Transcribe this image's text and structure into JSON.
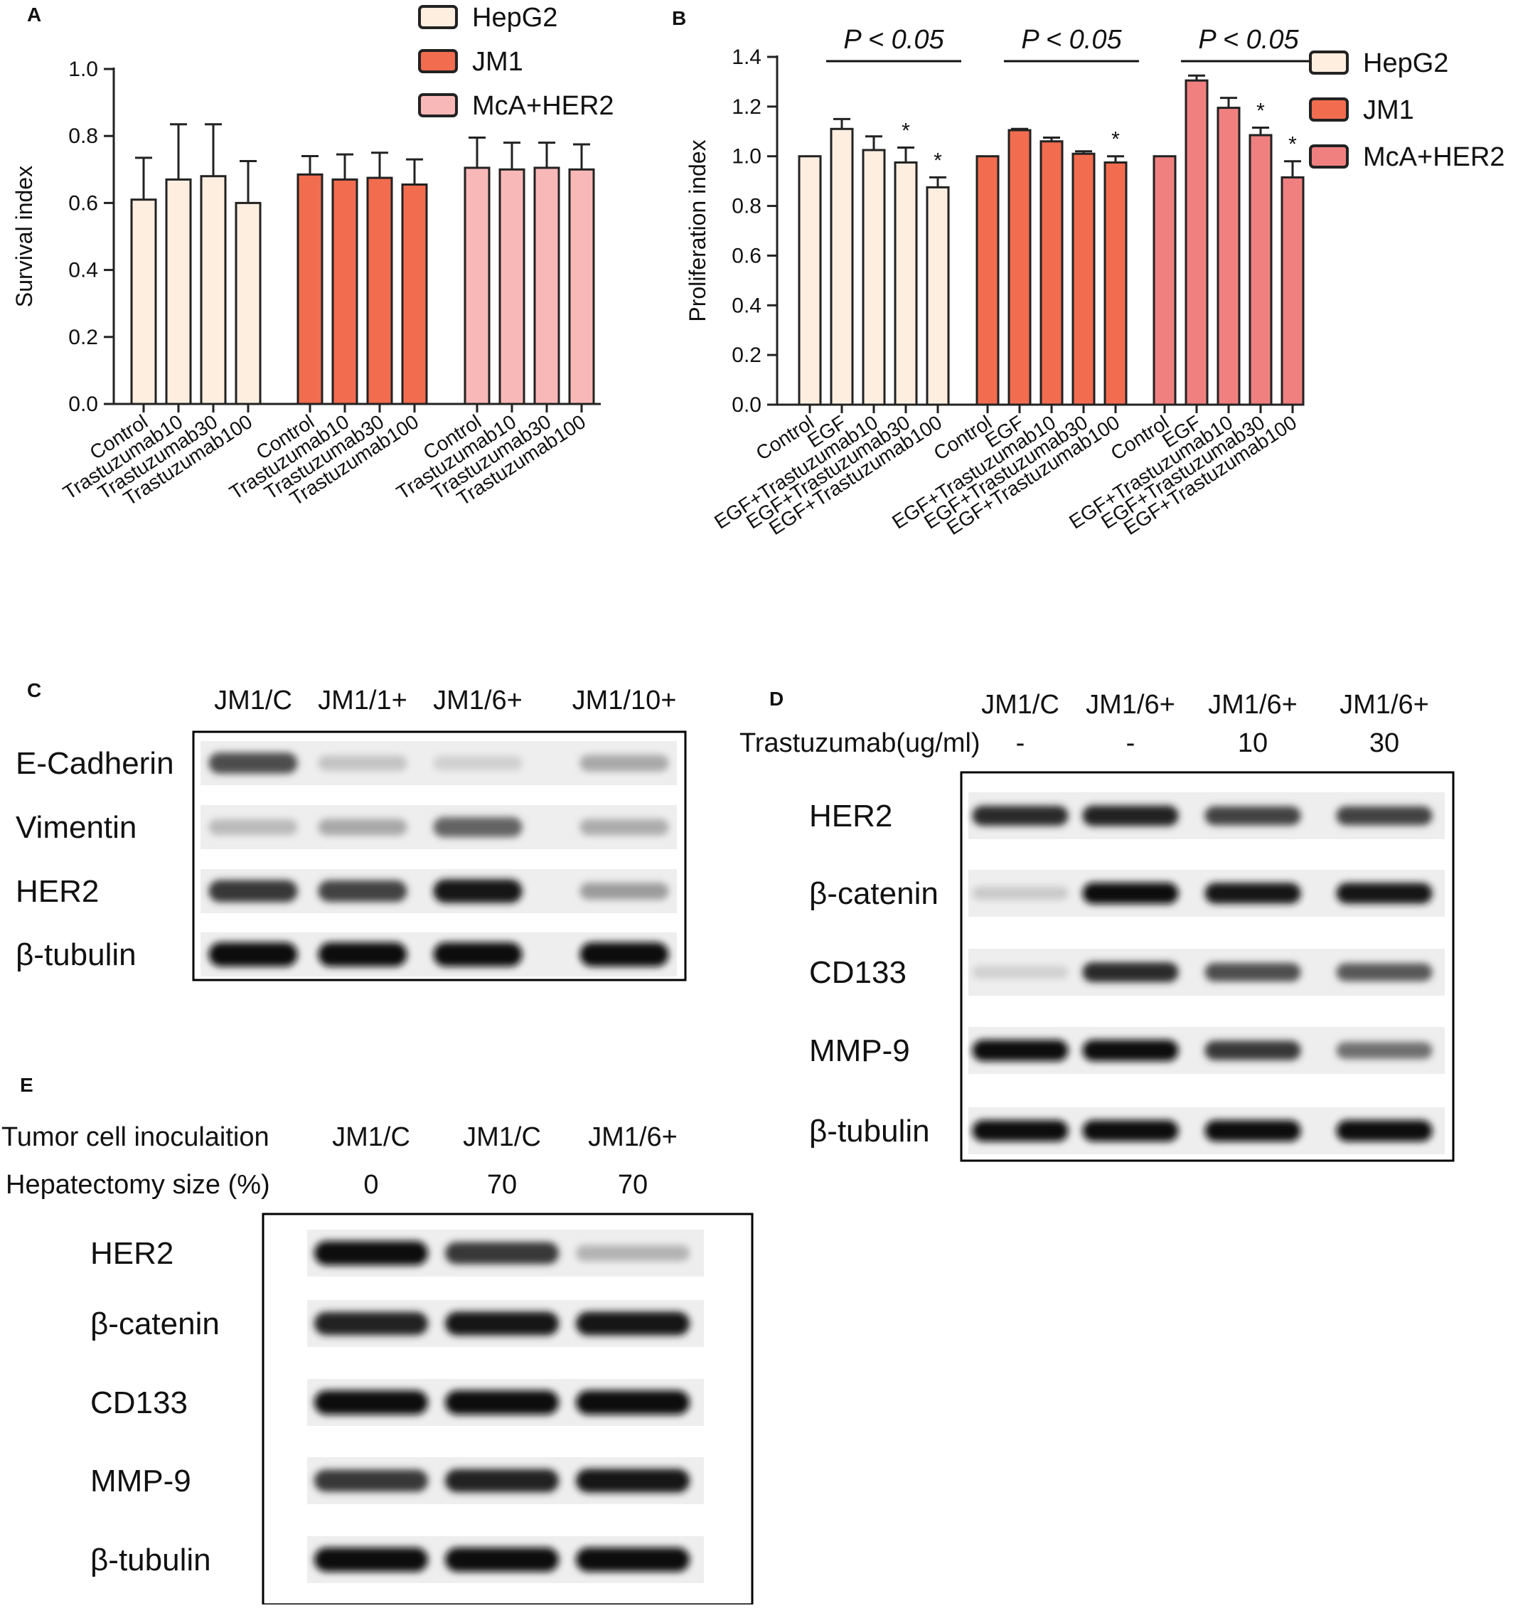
{
  "panels": {
    "A": {
      "label": "A"
    },
    "B": {
      "label": "B"
    },
    "C": {
      "label": "C"
    },
    "D": {
      "label": "D"
    },
    "E": {
      "label": "E"
    }
  },
  "legend": [
    {
      "name": "HepG2",
      "color": "#fdeee0"
    },
    {
      "name": "JM1",
      "color": "#f26c4f"
    },
    {
      "name": "McA+HER2",
      "color": "#f9b8b8"
    }
  ],
  "legend_b": [
    {
      "name": "HepG2",
      "color": "#fdeee0"
    },
    {
      "name": "JM1",
      "color": "#f26c4f"
    },
    {
      "name": "McA+HER2",
      "color": "#f08080"
    }
  ],
  "chart_data": [
    {
      "panel": "A",
      "type": "bar",
      "ylabel": "Survival index",
      "ylim": [
        0,
        1.0
      ],
      "yticks": [
        "0.0",
        "0.2",
        "0.4",
        "0.6",
        "0.8",
        "1.0"
      ],
      "groups": [
        {
          "series": "HepG2",
          "color": "#fdeee0",
          "categories": [
            "Control",
            "Trastuzumab10",
            "Trastuzumab30",
            "Trastuzumab100"
          ],
          "values": [
            0.61,
            0.67,
            0.68,
            0.6
          ],
          "errors": [
            0.125,
            0.165,
            0.155,
            0.125
          ]
        },
        {
          "series": "JM1",
          "color": "#f26c4f",
          "categories": [
            "Control",
            "Trastuzumab10",
            "Trastuzumab30",
            "Trastuzumab100"
          ],
          "values": [
            0.685,
            0.67,
            0.675,
            0.655
          ],
          "errors": [
            0.055,
            0.075,
            0.075,
            0.075
          ]
        },
        {
          "series": "McA+HER2",
          "color": "#f9b8b8",
          "categories": [
            "Control",
            "Trastuzumab10",
            "Trastuzumab30",
            "Trastuzumab100"
          ],
          "values": [
            0.705,
            0.7,
            0.705,
            0.7
          ],
          "errors": [
            0.09,
            0.08,
            0.075,
            0.075
          ]
        }
      ]
    },
    {
      "panel": "B",
      "type": "bar",
      "ylabel": "Proliferation index",
      "ylim": [
        0,
        1.4
      ],
      "yticks": [
        "0.0",
        "0.2",
        "0.4",
        "0.6",
        "0.8",
        "1.0",
        "1.2",
        "1.4"
      ],
      "groups": [
        {
          "series": "HepG2",
          "color": "#fdeee0",
          "pvalue": "P < 0.05",
          "categories": [
            "Control",
            "EGF",
            "EGF+Trastuzumab10",
            "EGF+Trastuzumab30",
            "EGF+Trastuzumab100"
          ],
          "values": [
            1.0,
            1.11,
            1.025,
            0.975,
            0.875
          ],
          "errors": [
            0,
            0.04,
            0.055,
            0.06,
            0.04
          ],
          "stars": [
            "",
            "",
            "",
            "*",
            "*"
          ]
        },
        {
          "series": "JM1",
          "color": "#f26c4f",
          "pvalue": "P < 0.05",
          "categories": [
            "Control",
            "EGF",
            "EGF+Trastuzumab10",
            "EGF+Trastuzumab30",
            "EGF+Trastuzumab100"
          ],
          "values": [
            1.0,
            1.105,
            1.06,
            1.01,
            0.975
          ],
          "errors": [
            0,
            0.005,
            0.015,
            0.01,
            0.025
          ],
          "stars": [
            "",
            "",
            "",
            "",
            "*"
          ]
        },
        {
          "series": "McA+HER2",
          "color": "#f08080",
          "pvalue": "P < 0.05",
          "categories": [
            "Control",
            "EGF",
            "EGF+Trastuzumab10",
            "EGF+Trastuzumab30",
            "EGF+Trastuzumab100"
          ],
          "values": [
            1.0,
            1.305,
            1.195,
            1.085,
            0.915
          ],
          "errors": [
            0,
            0.02,
            0.04,
            0.03,
            0.065
          ],
          "stars": [
            "",
            "",
            "",
            "*",
            "*"
          ]
        }
      ]
    }
  ],
  "blot_c": {
    "lanes": [
      "JM1/C",
      "JM1/1+",
      "JM1/6+",
      "JM1/10+"
    ],
    "proteins": [
      {
        "name": "E-Cadherin",
        "intensity": [
          0.7,
          0.18,
          0.12,
          0.3
        ]
      },
      {
        "name": "Vimentin",
        "intensity": [
          0.22,
          0.3,
          0.6,
          0.28
        ]
      },
      {
        "name": "HER2",
        "intensity": [
          0.8,
          0.75,
          0.95,
          0.35
        ]
      },
      {
        "name": "β-tubulin",
        "intensity": [
          1.0,
          1.0,
          1.0,
          1.0
        ]
      }
    ]
  },
  "blot_d": {
    "lanes": [
      "JM1/C",
      "JM1/6+",
      "JM1/6+",
      "JM1/6+"
    ],
    "treatment_label": "Trastuzumab(ug/ml)",
    "treatment_values": [
      "-",
      "-",
      "10",
      "30"
    ],
    "proteins": [
      {
        "name": "HER2",
        "intensity": [
          0.85,
          0.9,
          0.75,
          0.75
        ]
      },
      {
        "name": "β-catenin",
        "intensity": [
          0.15,
          1.0,
          0.95,
          0.95
        ]
      },
      {
        "name": "CD133",
        "intensity": [
          0.12,
          0.85,
          0.7,
          0.65
        ]
      },
      {
        "name": "MMP-9",
        "intensity": [
          1.0,
          1.0,
          0.8,
          0.55
        ]
      },
      {
        "name": "β-tubulin",
        "intensity": [
          1.0,
          1.0,
          1.0,
          1.0
        ]
      }
    ]
  },
  "blot_e": {
    "lanes": [
      "JM1/C",
      "JM1/C",
      "JM1/6+"
    ],
    "row1_label": "Tumor cell inoculaition",
    "row2_label": "Hepatectomy size (%)",
    "row2_values": [
      "0",
      "70",
      "70"
    ],
    "proteins": [
      {
        "name": "HER2",
        "intensity": [
          1.0,
          0.8,
          0.25
        ]
      },
      {
        "name": "β-catenin",
        "intensity": [
          0.9,
          0.95,
          0.95
        ]
      },
      {
        "name": "CD133",
        "intensity": [
          1.0,
          1.0,
          1.0
        ]
      },
      {
        "name": "MMP-9",
        "intensity": [
          0.8,
          0.9,
          0.95
        ]
      },
      {
        "name": "β-tubulin",
        "intensity": [
          1.0,
          1.0,
          1.0
        ]
      }
    ]
  }
}
